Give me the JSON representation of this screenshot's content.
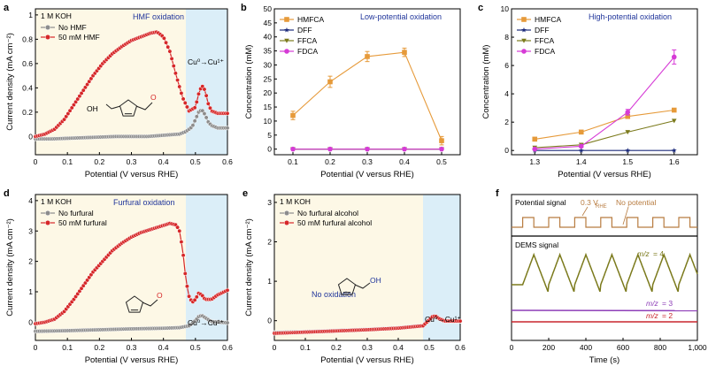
{
  "colors": {
    "beige": "#fdf8e6",
    "blue": "#dbeef8",
    "red": "#d62728",
    "grey": "#8c8c8c",
    "orange": "#e69a3a",
    "navy": "#1b2a7a",
    "olive": "#7b7a1c",
    "magenta": "#d63bd6",
    "title_blue": "#20359b",
    "purple": "#8e3fb8",
    "dark_red": "#c8262e",
    "signal": "#b87c40"
  },
  "chart_data": [
    {
      "id": "a",
      "type": "line",
      "panel_label": "a",
      "title": "HMF oxidation",
      "xlabel": "Potential (V versus RHE)",
      "ylabel": "Current density (mA cm⁻²)",
      "xlim": [
        0,
        0.6
      ],
      "ylim": [
        -0.15,
        1.05
      ],
      "xticks": [
        0,
        0.1,
        0.2,
        0.3,
        0.4,
        0.5,
        0.6
      ],
      "yticks": [
        0,
        0.2,
        0.4,
        0.6,
        0.8,
        1.0
      ],
      "shade_split": 0.47,
      "annotations": [
        "1 M KOH",
        "Cu⁰→Cu¹⁺"
      ],
      "legend_position": "top-left",
      "series": [
        {
          "name": "No HMF",
          "color_key": "grey",
          "x": [
            0,
            0.05,
            0.1,
            0.15,
            0.2,
            0.25,
            0.3,
            0.35,
            0.4,
            0.45,
            0.47,
            0.49,
            0.5,
            0.51,
            0.52,
            0.53,
            0.54,
            0.55,
            0.57,
            0.6
          ],
          "y": [
            -0.02,
            -0.02,
            -0.015,
            -0.01,
            -0.005,
            0,
            0,
            0,
            0.01,
            0.02,
            0.04,
            0.08,
            0.14,
            0.2,
            0.22,
            0.18,
            0.12,
            0.09,
            0.07,
            0.07
          ]
        },
        {
          "name": "50 mM HMF",
          "color_key": "red",
          "x": [
            0,
            0.03,
            0.06,
            0.09,
            0.12,
            0.15,
            0.18,
            0.21,
            0.24,
            0.27,
            0.3,
            0.33,
            0.36,
            0.38,
            0.4,
            0.42,
            0.44,
            0.46,
            0.48,
            0.5,
            0.51,
            0.52,
            0.53,
            0.54,
            0.55,
            0.57,
            0.6
          ],
          "y": [
            0.0,
            0.02,
            0.06,
            0.14,
            0.26,
            0.38,
            0.5,
            0.6,
            0.68,
            0.74,
            0.79,
            0.82,
            0.85,
            0.86,
            0.82,
            0.7,
            0.5,
            0.32,
            0.21,
            0.24,
            0.35,
            0.42,
            0.38,
            0.27,
            0.21,
            0.19,
            0.19
          ]
        }
      ]
    },
    {
      "id": "b",
      "type": "line",
      "panel_label": "b",
      "title": "Low-potential oxidation",
      "xlabel": "Potential (V versus RHE)",
      "ylabel": "Concentration (mM)",
      "xlim": [
        0.05,
        0.55
      ],
      "ylim": [
        -2,
        50
      ],
      "xticks": [
        0.1,
        0.2,
        0.3,
        0.4,
        0.5
      ],
      "yticks": [
        0,
        5,
        10,
        15,
        20,
        25,
        30,
        35,
        40,
        45,
        50
      ],
      "legend_position": "top-left",
      "series": [
        {
          "name": "HMFCA",
          "color_key": "orange",
          "marker": "square",
          "x": [
            0.1,
            0.2,
            0.3,
            0.4,
            0.5
          ],
          "y": [
            12,
            24,
            33,
            34.5,
            3
          ],
          "err": [
            1.5,
            2,
            1.8,
            1.5,
            1.5
          ]
        },
        {
          "name": "DFF",
          "color_key": "navy",
          "marker": "star",
          "x": [
            0.1,
            0.2,
            0.3,
            0.4,
            0.5
          ],
          "y": [
            0,
            0,
            0,
            0,
            0
          ]
        },
        {
          "name": "FFCA",
          "color_key": "olive",
          "marker": "tri-down",
          "x": [
            0.1,
            0.2,
            0.3,
            0.4,
            0.5
          ],
          "y": [
            0,
            0,
            0,
            0,
            0
          ]
        },
        {
          "name": "FDCA",
          "color_key": "magenta",
          "marker": "circle",
          "x": [
            0.1,
            0.2,
            0.3,
            0.4,
            0.5
          ],
          "y": [
            0,
            0,
            0,
            0,
            0
          ]
        }
      ]
    },
    {
      "id": "c",
      "type": "line",
      "panel_label": "c",
      "title": "High-potential oxidation",
      "xlabel": "Potential (V versus RHE)",
      "ylabel": "Concentration (mM)",
      "xlim": [
        1.25,
        1.65
      ],
      "ylim": [
        -0.3,
        10
      ],
      "xticks": [
        1.3,
        1.4,
        1.5,
        1.6
      ],
      "yticks": [
        0,
        2,
        4,
        6,
        8,
        10
      ],
      "legend_position": "top-left",
      "series": [
        {
          "name": "HMFCA",
          "color_key": "orange",
          "marker": "square",
          "x": [
            1.3,
            1.4,
            1.5,
            1.6
          ],
          "y": [
            0.8,
            1.3,
            2.4,
            2.85
          ]
        },
        {
          "name": "DFF",
          "color_key": "navy",
          "marker": "star",
          "x": [
            1.3,
            1.4,
            1.5,
            1.6
          ],
          "y": [
            0,
            0,
            0,
            0
          ]
        },
        {
          "name": "FFCA",
          "color_key": "olive",
          "marker": "tri-down",
          "x": [
            1.3,
            1.4,
            1.5,
            1.6
          ],
          "y": [
            0.2,
            0.4,
            1.3,
            2.1
          ]
        },
        {
          "name": "FDCA",
          "color_key": "magenta",
          "marker": "circle",
          "x": [
            1.3,
            1.4,
            1.5,
            1.6
          ],
          "y": [
            0.1,
            0.3,
            2.7,
            6.6
          ],
          "err": [
            0.05,
            0.1,
            0.2,
            0.5
          ]
        }
      ]
    },
    {
      "id": "d",
      "type": "line",
      "panel_label": "d",
      "title": "Furfural oxidation",
      "xlabel": "Potential (V versus RHE)",
      "ylabel": "Current density (mA cm⁻²)",
      "xlim": [
        0,
        0.6
      ],
      "ylim": [
        -0.6,
        4.2
      ],
      "xticks": [
        0,
        0.1,
        0.2,
        0.3,
        0.4,
        0.5,
        0.6
      ],
      "yticks": [
        0,
        1,
        2,
        3,
        4
      ],
      "shade_split": 0.47,
      "annotations": [
        "1 M KOH",
        "Cu⁰→Cu¹⁺"
      ],
      "legend_position": "top-left",
      "series": [
        {
          "name": "No furfural",
          "color_key": "grey",
          "x": [
            0,
            0.1,
            0.2,
            0.3,
            0.4,
            0.45,
            0.48,
            0.5,
            0.51,
            0.52,
            0.53,
            0.55,
            0.6
          ],
          "y": [
            -0.3,
            -0.28,
            -0.25,
            -0.22,
            -0.2,
            -0.18,
            -0.12,
            0.05,
            0.18,
            0.22,
            0.15,
            0.02,
            -0.02
          ]
        },
        {
          "name": "50 mM furfural",
          "color_key": "red",
          "x": [
            0,
            0.03,
            0.06,
            0.09,
            0.12,
            0.15,
            0.18,
            0.21,
            0.24,
            0.27,
            0.3,
            0.33,
            0.36,
            0.39,
            0.42,
            0.44,
            0.45,
            0.46,
            0.47,
            0.48,
            0.49,
            0.5,
            0.51,
            0.52,
            0.53,
            0.55,
            0.57,
            0.6
          ],
          "y": [
            -0.05,
            0.0,
            0.1,
            0.35,
            0.75,
            1.2,
            1.65,
            2.0,
            2.35,
            2.6,
            2.8,
            2.95,
            3.05,
            3.15,
            3.25,
            3.2,
            3.0,
            2.4,
            1.4,
            0.85,
            0.65,
            0.75,
            0.95,
            0.9,
            0.75,
            0.75,
            0.9,
            1.05
          ]
        }
      ]
    },
    {
      "id": "e",
      "type": "line",
      "panel_label": "e",
      "title": "No oxidation",
      "xlabel": "Potential (V versus RHE)",
      "ylabel": "Current density (mA cm⁻²)",
      "xlim": [
        0,
        0.6
      ],
      "ylim": [
        -0.5,
        3.2
      ],
      "xticks": [
        0,
        0.1,
        0.2,
        0.3,
        0.4,
        0.5,
        0.6
      ],
      "yticks": [
        0,
        1,
        2,
        3
      ],
      "shade_split": 0.48,
      "annotations": [
        "1 M KOH",
        "Cu⁰→Cu¹⁺"
      ],
      "legend_position": "top-left",
      "series": [
        {
          "name": "No furfural alcohol",
          "color_key": "grey",
          "x": [
            0,
            0.1,
            0.2,
            0.3,
            0.4,
            0.48,
            0.5,
            0.51,
            0.52,
            0.53,
            0.55,
            0.6
          ],
          "y": [
            -0.3,
            -0.28,
            -0.25,
            -0.22,
            -0.18,
            -0.12,
            0.0,
            0.08,
            0.1,
            0.05,
            -0.02,
            -0.02
          ]
        },
        {
          "name": "50 mM furfural alcohol",
          "color_key": "red",
          "x": [
            0,
            0.1,
            0.2,
            0.3,
            0.4,
            0.48,
            0.5,
            0.51,
            0.52,
            0.53,
            0.55,
            0.6
          ],
          "y": [
            -0.32,
            -0.29,
            -0.26,
            -0.23,
            -0.19,
            -0.13,
            0.02,
            0.1,
            0.12,
            0.06,
            -0.01,
            -0.01
          ]
        }
      ]
    },
    {
      "id": "f",
      "type": "line",
      "panel_label": "f",
      "xlabel": "Time (s)",
      "xlim": [
        0,
        1000
      ],
      "xticks": [
        0,
        200,
        400,
        600,
        800,
        1000
      ],
      "xtick_labels": [
        "0",
        "200",
        "400",
        "600",
        "800",
        "1,000"
      ],
      "annotations": [
        "Potential signal",
        "DEMS signal",
        "No potential",
        "0.3 V",
        "RHE"
      ],
      "pulse_starts": [
        60,
        200,
        340,
        480,
        620,
        760,
        900
      ],
      "pulse_duration": 60,
      "series": [
        {
          "name": "m/z = 4",
          "color_key": "olive",
          "peak_times": [
            120,
            260,
            400,
            540,
            680,
            820,
            960
          ]
        },
        {
          "name": "m/z = 3",
          "color_key": "purple",
          "level": 0.3
        },
        {
          "name": "m/z = 2",
          "color_key": "dark_red",
          "level": 0.15
        }
      ],
      "series_labels": [
        {
          "prefix": "m/z",
          "value": " = 4"
        },
        {
          "prefix": "m/z",
          "value": " = 3"
        },
        {
          "prefix": "m/z",
          "value": " = 2"
        }
      ]
    }
  ]
}
